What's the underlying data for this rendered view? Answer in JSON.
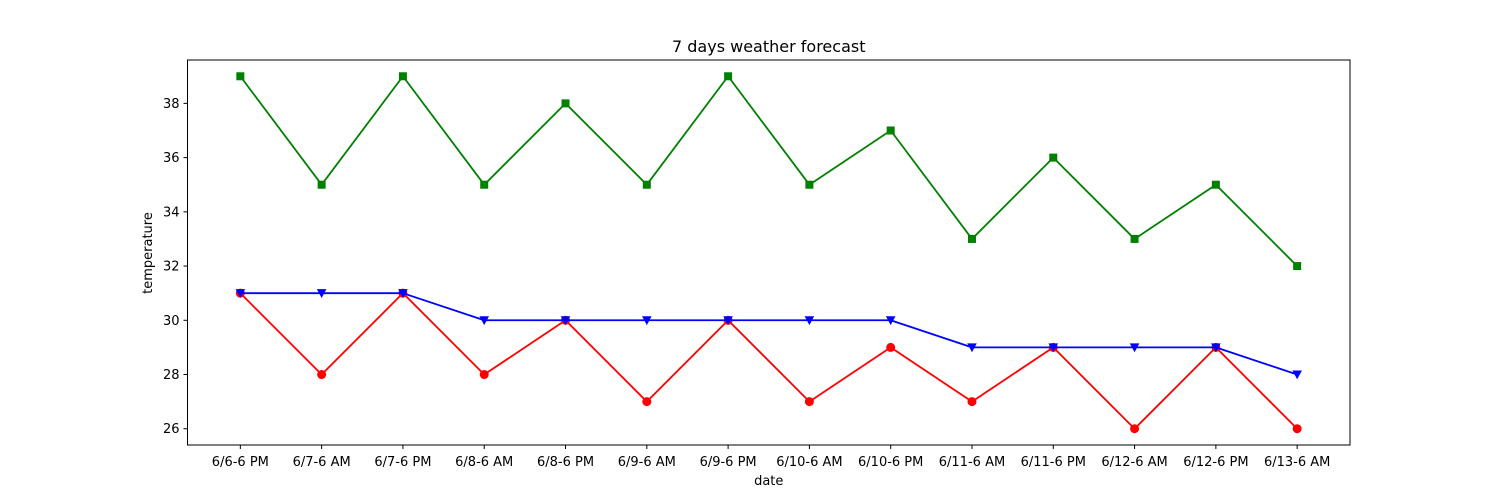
{
  "chart_data": {
    "type": "line",
    "title": "7 days weather forecast",
    "xlabel": "date",
    "ylabel": "temperature",
    "categories": [
      "6/6-6 PM",
      "6/7-6 AM",
      "6/7-6 PM",
      "6/8-6 AM",
      "6/8-6 PM",
      "6/9-6 AM",
      "6/9-6 PM",
      "6/10-6 AM",
      "6/10-6 PM",
      "6/11-6 AM",
      "6/11-6 PM",
      "6/12-6 AM",
      "6/12-6 PM",
      "6/13-6 AM"
    ],
    "ylim": [
      25.4,
      39.6
    ],
    "yticks": [
      26,
      28,
      30,
      32,
      34,
      36,
      38
    ],
    "grid": false,
    "series": [
      {
        "color": "#008000",
        "marker": "square",
        "values": [
          39,
          35,
          39,
          35,
          38,
          35,
          39,
          35,
          37,
          33,
          36,
          33,
          35,
          32
        ]
      },
      {
        "color": "#ff0000",
        "marker": "circle",
        "values": [
          31,
          28,
          31,
          28,
          30,
          27,
          30,
          27,
          29,
          27,
          29,
          26,
          29,
          26
        ]
      },
      {
        "color": "#0000ff",
        "marker": "triangle-down",
        "values": [
          31,
          31,
          31,
          30,
          30,
          30,
          30,
          30,
          30,
          29,
          29,
          29,
          29,
          28
        ]
      }
    ]
  }
}
